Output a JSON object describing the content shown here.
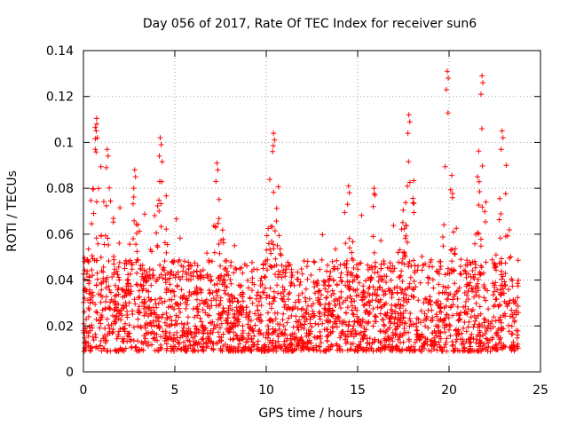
{
  "chart_data": {
    "type": "scatter",
    "title": "Day 056 of 2017, Rate Of TEC Index for receiver sun6",
    "xlabel": "GPS time / hours",
    "ylabel": "ROTI / TECUs",
    "xlim": [
      0,
      25
    ],
    "ylim": [
      0,
      0.14
    ],
    "xticks": [
      0,
      5,
      10,
      15,
      20,
      25
    ],
    "xtick_labels": [
      "0",
      "5",
      "10",
      "15",
      "20",
      "25"
    ],
    "yticks": [
      0,
      0.02,
      0.04,
      0.06,
      0.08,
      0.1,
      0.12,
      0.14
    ],
    "ytick_labels": [
      "0",
      "0.02",
      "0.04",
      "0.06",
      "0.08",
      "0.1",
      "0.12",
      "0.14"
    ],
    "grid": true,
    "marker": "plus",
    "series": [
      {
        "name": "ROTI",
        "color": "#ff0000",
        "data_range_hours": [
          0,
          23.8
        ],
        "typical_range": [
          0.005,
          0.045
        ],
        "peaks": [
          {
            "x": 0.7,
            "y": 0.105
          },
          {
            "x": 1.3,
            "y": 0.097
          },
          {
            "x": 2.8,
            "y": 0.088
          },
          {
            "x": 4.2,
            "y": 0.102
          },
          {
            "x": 7.3,
            "y": 0.091
          },
          {
            "x": 10.4,
            "y": 0.104
          },
          {
            "x": 14.5,
            "y": 0.081
          },
          {
            "x": 15.9,
            "y": 0.08
          },
          {
            "x": 17.8,
            "y": 0.112
          },
          {
            "x": 19.9,
            "y": 0.131
          },
          {
            "x": 21.8,
            "y": 0.129
          },
          {
            "x": 22.9,
            "y": 0.105
          }
        ]
      }
    ]
  }
}
